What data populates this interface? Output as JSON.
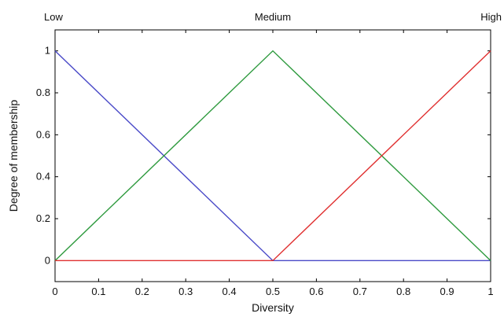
{
  "chart_data": {
    "type": "line",
    "xlabel": "Diversity",
    "ylabel": "Degree of membership",
    "xlim": [
      0,
      1
    ],
    "ylim": [
      -0.1,
      1.1
    ],
    "grid": false,
    "xticks": [
      "0",
      "0.1",
      "0.2",
      "0.3",
      "0.4",
      "0.5",
      "0.6",
      "0.7",
      "0.8",
      "0.9",
      "1"
    ],
    "yticks": [
      "0",
      "0.2",
      "0.4",
      "0.6",
      "0.8",
      "1"
    ],
    "series": [
      {
        "name": "Low",
        "color": "#4a4ac8",
        "x": [
          0,
          0.5,
          1
        ],
        "y": [
          1,
          0,
          0
        ]
      },
      {
        "name": "Medium",
        "color": "#2e9a3e",
        "x": [
          0,
          0.5,
          1
        ],
        "y": [
          0,
          1,
          0
        ]
      },
      {
        "name": "High",
        "color": "#e03030",
        "x": [
          0,
          0.5,
          1
        ],
        "y": [
          0,
          0,
          1
        ]
      }
    ]
  }
}
